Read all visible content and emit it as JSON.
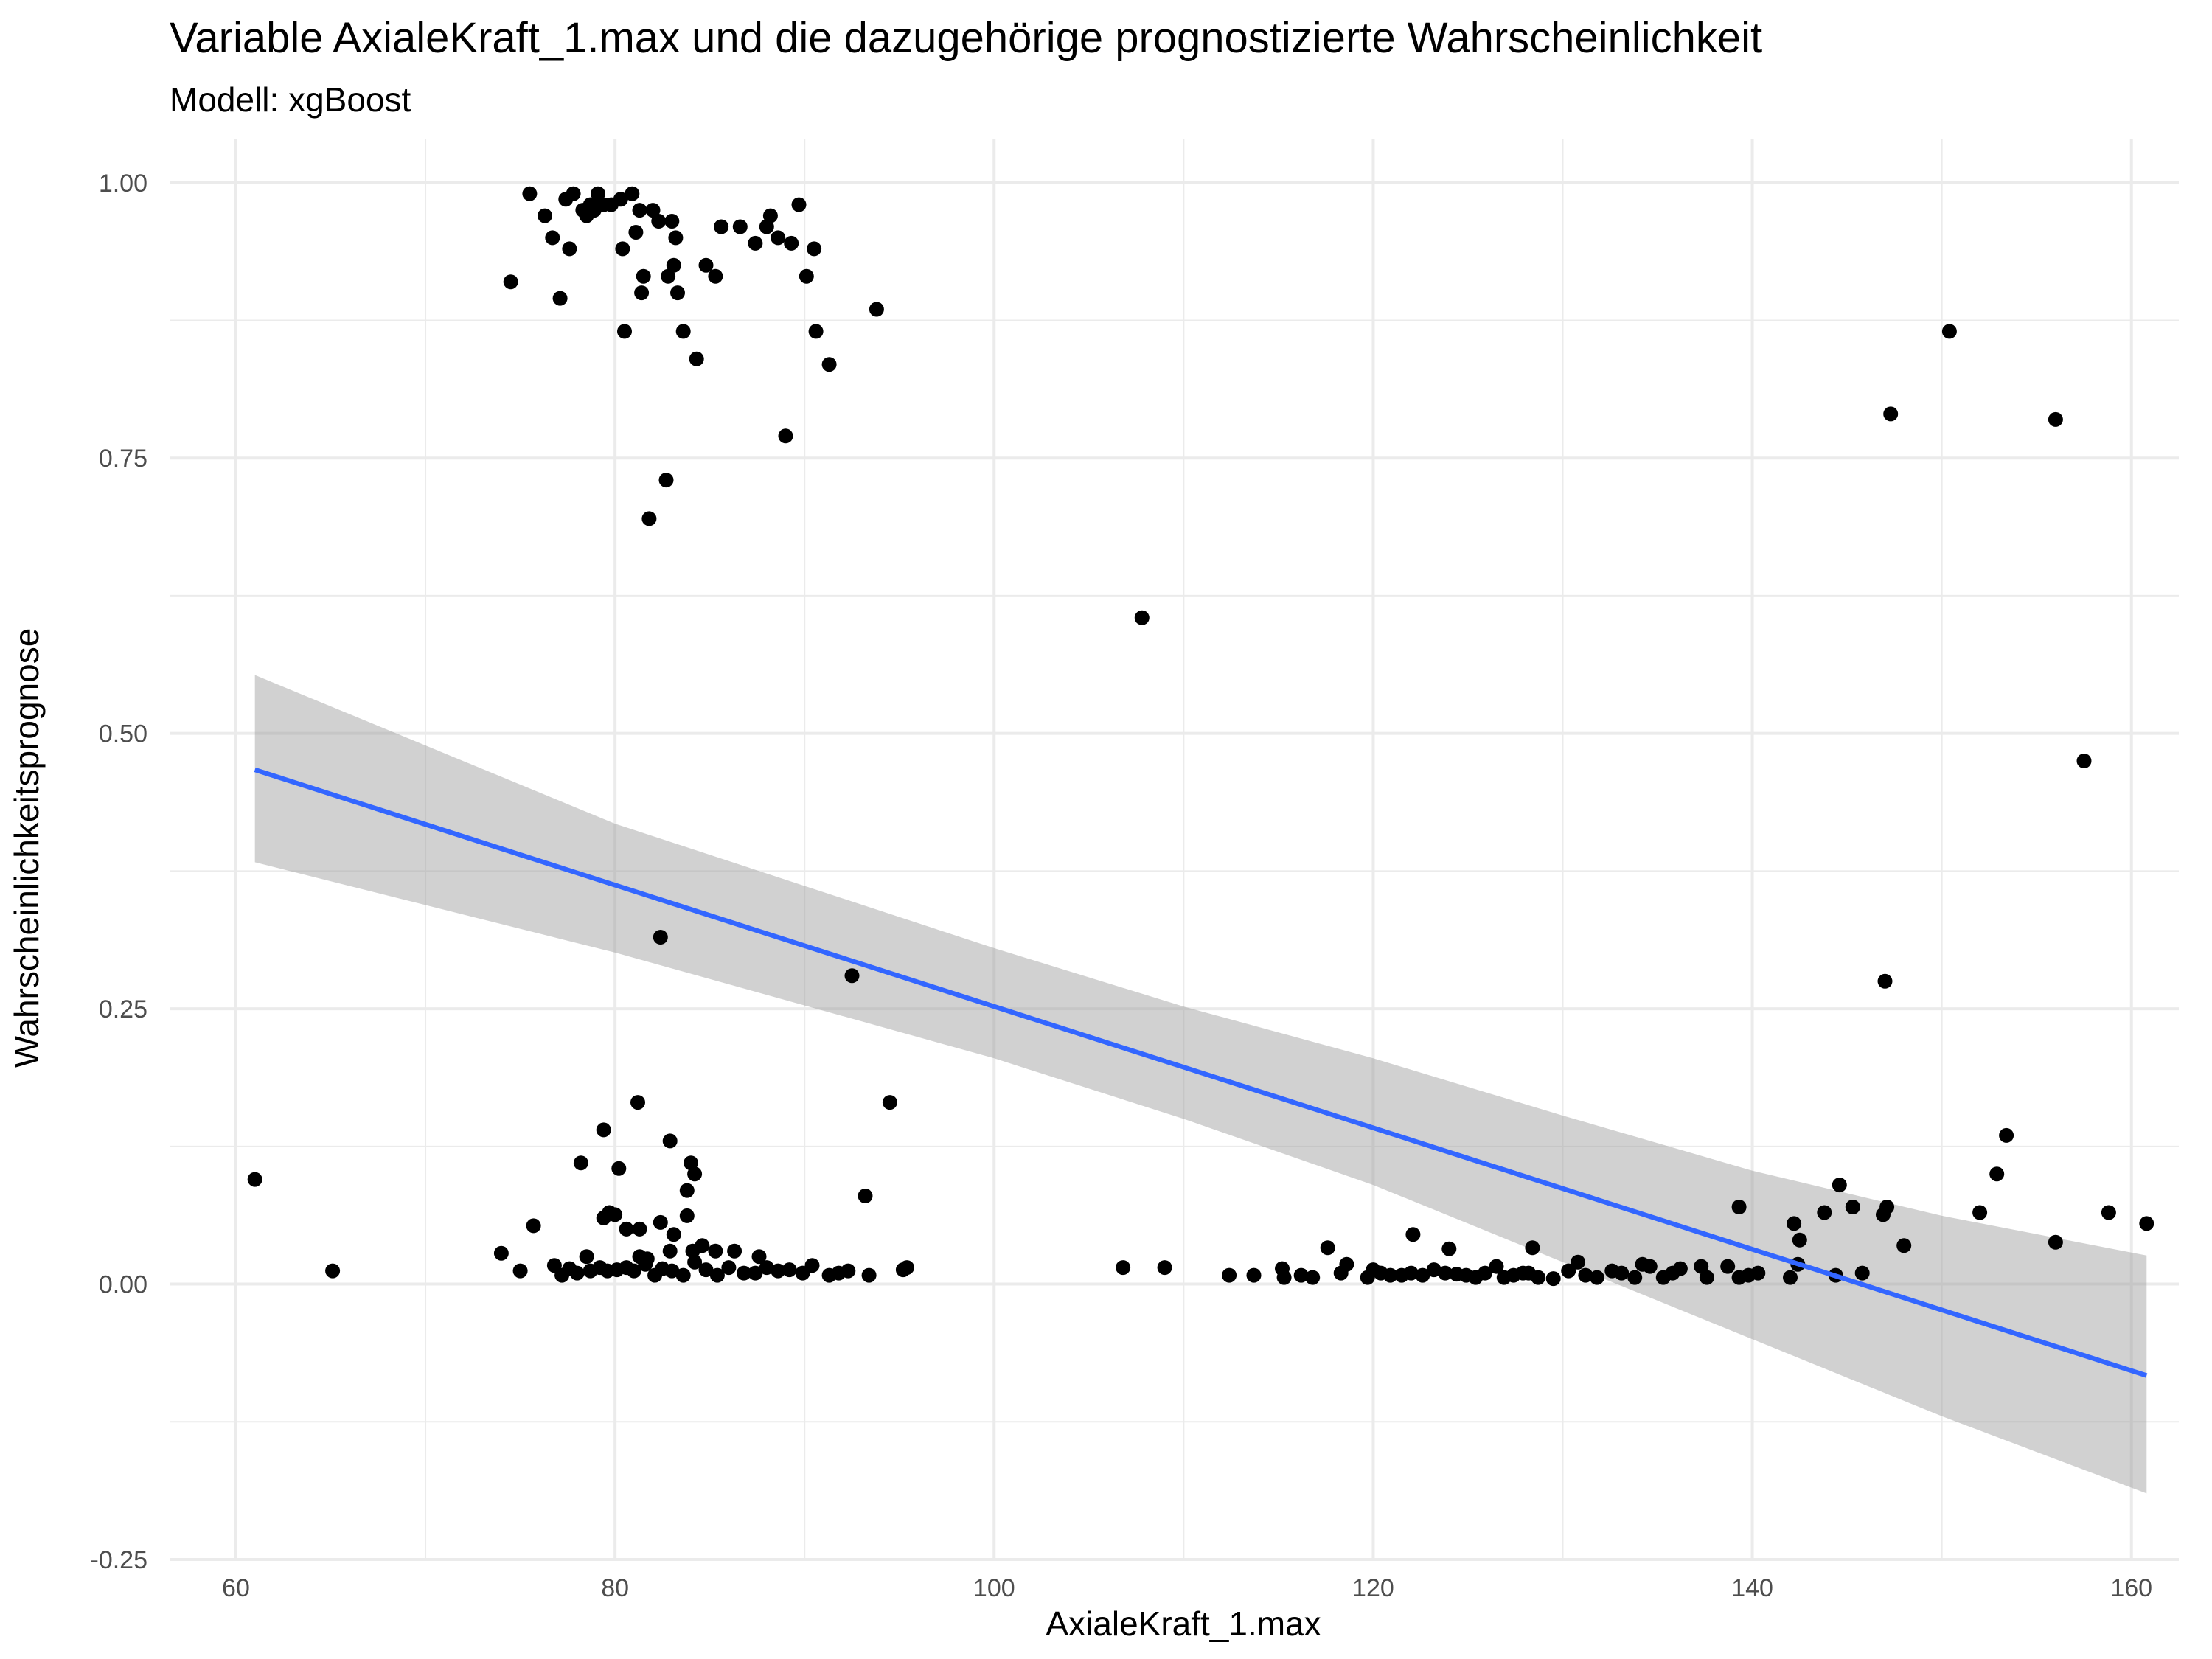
{
  "chart_data": {
    "type": "scatter",
    "title": "Variable AxialeKraft_1.max und die dazugehörige prognostizierte Wahrscheinlichkeit",
    "subtitle": "Modell: xgBoost",
    "xlabel": "AxialeKraft_1.max",
    "ylabel": "Wahrscheinlichkeitsprognose",
    "xlim": [
      56.5,
      162.5
    ],
    "ylim": [
      -0.25,
      1.04
    ],
    "x_ticks": [
      60,
      80,
      100,
      120,
      140,
      160
    ],
    "x_tick_labels": [
      "60",
      "80",
      "100",
      "120",
      "140",
      "160"
    ],
    "y_ticks": [
      -0.25,
      0,
      0.25,
      0.5,
      0.75,
      1
    ],
    "y_tick_labels": [
      "-0.25",
      "0.00",
      "0.25",
      "0.50",
      "0.75",
      "1.00"
    ],
    "grid": true,
    "colors": {
      "points": "#000000",
      "trend": "#3366FF",
      "band": "#999999",
      "grid": "#ebebeb"
    },
    "trend": {
      "method": "lm",
      "line": [
        [
          61.0,
          0.467
        ],
        [
          160.8,
          -0.083
        ]
      ],
      "ci_upper": [
        [
          61.0,
          0.553
        ],
        [
          80,
          0.418
        ],
        [
          100,
          0.305
        ],
        [
          110,
          0.252
        ],
        [
          120,
          0.205
        ],
        [
          130,
          0.153
        ],
        [
          140,
          0.103
        ],
        [
          150,
          0.062
        ],
        [
          160.8,
          0.026
        ]
      ],
      "ci_lower": [
        [
          61.0,
          0.383
        ],
        [
          80,
          0.301
        ],
        [
          100,
          0.205
        ],
        [
          110,
          0.15
        ],
        [
          120,
          0.09
        ],
        [
          130,
          0.02
        ],
        [
          140,
          -0.05
        ],
        [
          150,
          -0.12
        ],
        [
          160.8,
          -0.19
        ]
      ]
    },
    "points": [
      [
        74.5,
        0.91
      ],
      [
        75.5,
        0.99
      ],
      [
        76.3,
        0.97
      ],
      [
        76.7,
        0.95
      ],
      [
        77.1,
        0.895
      ],
      [
        77.4,
        0.985
      ],
      [
        77.6,
        0.94
      ],
      [
        77.8,
        0.99
      ],
      [
        78.3,
        0.975
      ],
      [
        78.5,
        0.97
      ],
      [
        78.7,
        0.98
      ],
      [
        78.9,
        0.975
      ],
      [
        79.1,
        0.99
      ],
      [
        79.4,
        0.98
      ],
      [
        79.8,
        0.98
      ],
      [
        80.3,
        0.985
      ],
      [
        80.4,
        0.94
      ],
      [
        80.5,
        0.865
      ],
      [
        80.9,
        0.99
      ],
      [
        81.1,
        0.955
      ],
      [
        81.3,
        0.975
      ],
      [
        81.5,
        0.915
      ],
      [
        81.4,
        0.9
      ],
      [
        82.0,
        0.975
      ],
      [
        82.3,
        0.965
      ],
      [
        82.8,
        0.915
      ],
      [
        83.0,
        0.965
      ],
      [
        83.1,
        0.925
      ],
      [
        83.2,
        0.95
      ],
      [
        83.3,
        0.9
      ],
      [
        83.6,
        0.865
      ],
      [
        84.3,
        0.84
      ],
      [
        84.8,
        0.925
      ],
      [
        85.3,
        0.915
      ],
      [
        85.6,
        0.96
      ],
      [
        86.6,
        0.96
      ],
      [
        87.4,
        0.945
      ],
      [
        88.0,
        0.96
      ],
      [
        88.2,
        0.97
      ],
      [
        88.6,
        0.95
      ],
      [
        89.3,
        0.945
      ],
      [
        89.7,
        0.98
      ],
      [
        90.1,
        0.915
      ],
      [
        90.5,
        0.94
      ],
      [
        90.6,
        0.865
      ],
      [
        91.3,
        0.835
      ],
      [
        93.8,
        0.885
      ],
      [
        89.0,
        0.77
      ],
      [
        82.7,
        0.73
      ],
      [
        81.8,
        0.695
      ],
      [
        107.8,
        0.605
      ],
      [
        150.4,
        0.865
      ],
      [
        147.3,
        0.79
      ],
      [
        156.0,
        0.785
      ],
      [
        157.5,
        0.475
      ],
      [
        82.4,
        0.315
      ],
      [
        92.5,
        0.28
      ],
      [
        147.0,
        0.275
      ],
      [
        94.5,
        0.165
      ],
      [
        81.2,
        0.165
      ],
      [
        79.4,
        0.14
      ],
      [
        82.9,
        0.13
      ],
      [
        153.4,
        0.135
      ],
      [
        78.2,
        0.11
      ],
      [
        84.0,
        0.11
      ],
      [
        84.2,
        0.1
      ],
      [
        80.2,
        0.105
      ],
      [
        83.8,
        0.085
      ],
      [
        93.2,
        0.08
      ],
      [
        152.9,
        0.1
      ],
      [
        144.6,
        0.09
      ],
      [
        61.0,
        0.095
      ],
      [
        139.3,
        0.07
      ],
      [
        143.8,
        0.065
      ],
      [
        145.3,
        0.07
      ],
      [
        147.1,
        0.07
      ],
      [
        146.9,
        0.063
      ],
      [
        152.0,
        0.065
      ],
      [
        158.8,
        0.065
      ],
      [
        160.8,
        0.055
      ],
      [
        142.2,
        0.055
      ],
      [
        142.5,
        0.04
      ],
      [
        148.0,
        0.035
      ],
      [
        156.0,
        0.038
      ],
      [
        79.7,
        0.065
      ],
      [
        80.0,
        0.063
      ],
      [
        79.4,
        0.06
      ],
      [
        83.8,
        0.062
      ],
      [
        75.7,
        0.053
      ],
      [
        80.6,
        0.05
      ],
      [
        81.3,
        0.05
      ],
      [
        82.4,
        0.056
      ],
      [
        83.1,
        0.045
      ],
      [
        122.1,
        0.045
      ],
      [
        117.6,
        0.033
      ],
      [
        124.0,
        0.032
      ],
      [
        128.4,
        0.033
      ],
      [
        74.0,
        0.028
      ],
      [
        78.5,
        0.025
      ],
      [
        81.3,
        0.025
      ],
      [
        81.7,
        0.023
      ],
      [
        82.9,
        0.03
      ],
      [
        84.1,
        0.03
      ],
      [
        84.6,
        0.035
      ],
      [
        85.3,
        0.03
      ],
      [
        86.3,
        0.03
      ],
      [
        87.6,
        0.025
      ],
      [
        65.1,
        0.012
      ],
      [
        75.0,
        0.012
      ],
      [
        76.8,
        0.017
      ],
      [
        77.2,
        0.008
      ],
      [
        77.6,
        0.014
      ],
      [
        78.0,
        0.01
      ],
      [
        78.7,
        0.012
      ],
      [
        79.2,
        0.015
      ],
      [
        79.6,
        0.012
      ],
      [
        80.1,
        0.013
      ],
      [
        80.6,
        0.015
      ],
      [
        81.0,
        0.012
      ],
      [
        81.6,
        0.018
      ],
      [
        82.1,
        0.008
      ],
      [
        82.5,
        0.014
      ],
      [
        83.0,
        0.012
      ],
      [
        83.6,
        0.008
      ],
      [
        84.2,
        0.02
      ],
      [
        84.8,
        0.013
      ],
      [
        85.4,
        0.008
      ],
      [
        86.0,
        0.015
      ],
      [
        86.8,
        0.01
      ],
      [
        87.4,
        0.01
      ],
      [
        88.0,
        0.015
      ],
      [
        88.6,
        0.012
      ],
      [
        89.2,
        0.013
      ],
      [
        89.9,
        0.01
      ],
      [
        90.4,
        0.017
      ],
      [
        91.3,
        0.008
      ],
      [
        91.8,
        0.01
      ],
      [
        92.3,
        0.012
      ],
      [
        93.4,
        0.008
      ],
      [
        95.2,
        0.013
      ],
      [
        95.4,
        0.015
      ],
      [
        106.8,
        0.015
      ],
      [
        109.0,
        0.015
      ],
      [
        112.4,
        0.008
      ],
      [
        113.7,
        0.008
      ],
      [
        115.2,
        0.014
      ],
      [
        115.3,
        0.006
      ],
      [
        116.2,
        0.008
      ],
      [
        116.8,
        0.006
      ],
      [
        118.3,
        0.01
      ],
      [
        118.6,
        0.018
      ],
      [
        119.7,
        0.006
      ],
      [
        120.0,
        0.013
      ],
      [
        120.4,
        0.01
      ],
      [
        120.9,
        0.008
      ],
      [
        121.5,
        0.008
      ],
      [
        122.0,
        0.01
      ],
      [
        122.6,
        0.008
      ],
      [
        123.2,
        0.013
      ],
      [
        123.8,
        0.01
      ],
      [
        124.4,
        0.009
      ],
      [
        124.9,
        0.008
      ],
      [
        125.4,
        0.006
      ],
      [
        125.9,
        0.01
      ],
      [
        126.5,
        0.016
      ],
      [
        126.9,
        0.006
      ],
      [
        127.4,
        0.008
      ],
      [
        127.9,
        0.01
      ],
      [
        128.2,
        0.01
      ],
      [
        128.7,
        0.006
      ],
      [
        129.5,
        0.005
      ],
      [
        130.3,
        0.012
      ],
      [
        130.8,
        0.02
      ],
      [
        131.2,
        0.008
      ],
      [
        131.8,
        0.006
      ],
      [
        132.6,
        0.012
      ],
      [
        133.1,
        0.01
      ],
      [
        133.8,
        0.006
      ],
      [
        134.2,
        0.018
      ],
      [
        134.6,
        0.016
      ],
      [
        135.3,
        0.006
      ],
      [
        135.8,
        0.01
      ],
      [
        136.2,
        0.014
      ],
      [
        137.3,
        0.016
      ],
      [
        137.6,
        0.006
      ],
      [
        138.7,
        0.016
      ],
      [
        139.3,
        0.006
      ],
      [
        139.8,
        0.008
      ],
      [
        140.3,
        0.01
      ],
      [
        142.0,
        0.006
      ],
      [
        142.4,
        0.018
      ],
      [
        144.4,
        0.008
      ],
      [
        145.8,
        0.01
      ]
    ]
  }
}
